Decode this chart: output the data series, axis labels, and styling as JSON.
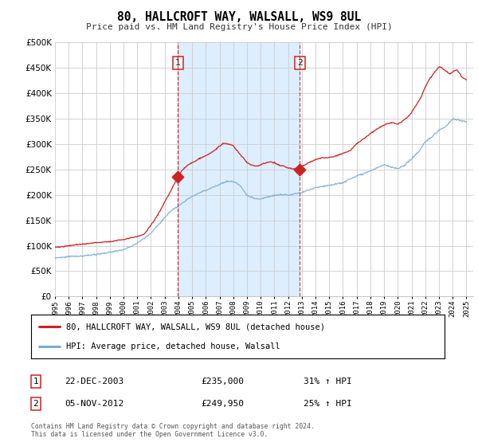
{
  "title": "80, HALLCROFT WAY, WALSALL, WS9 8UL",
  "subtitle": "Price paid vs. HM Land Registry's House Price Index (HPI)",
  "legend_label_red": "80, HALLCROFT WAY, WALSALL, WS9 8UL (detached house)",
  "legend_label_blue": "HPI: Average price, detached house, Walsall",
  "transaction1_date": "22-DEC-2003",
  "transaction1_price": "£235,000",
  "transaction1_hpi": "31% ↑ HPI",
  "transaction2_date": "05-NOV-2012",
  "transaction2_price": "£249,950",
  "transaction2_hpi": "25% ↑ HPI",
  "footer": "Contains HM Land Registry data © Crown copyright and database right 2024.\nThis data is licensed under the Open Government Licence v3.0.",
  "ylim": [
    0,
    500000
  ],
  "yticks": [
    0,
    50000,
    100000,
    150000,
    200000,
    250000,
    300000,
    350000,
    400000,
    450000,
    500000
  ],
  "xlim_start": 1995,
  "xlim_end": 2025.5,
  "background_color": "#ffffff",
  "plot_bg_color": "#ffffff",
  "grid_color": "#cccccc",
  "shade_color": "#ddeeff",
  "red_color": "#cc2222",
  "blue_color": "#7aadd4",
  "transaction1_x": 2003.97,
  "transaction2_x": 2012.84,
  "transaction1_y": 235000,
  "transaction2_y": 249950,
  "shade_x1": 2003.97,
  "shade_x2": 2012.84,
  "fig_width": 6.0,
  "fig_height": 5.6,
  "dpi": 100
}
